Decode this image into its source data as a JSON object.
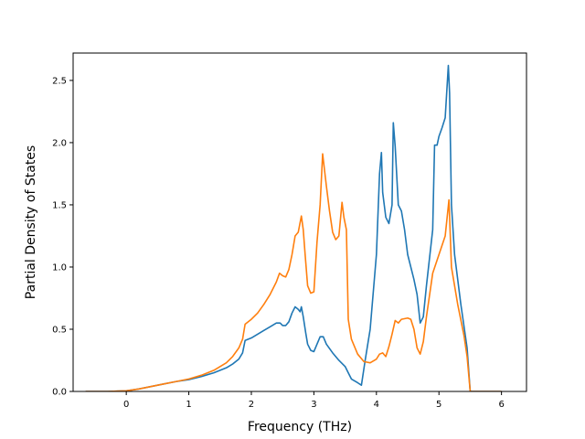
{
  "chart_data": {
    "type": "line",
    "title": "",
    "xlabel": "Frequency (THz)",
    "ylabel": "Partial Density of States",
    "xlim": [
      -0.85,
      6.4
    ],
    "ylim": [
      0,
      2.72
    ],
    "xticks": [
      0,
      1,
      2,
      3,
      4,
      5,
      6
    ],
    "xtick_labels": [
      "0",
      "1",
      "2",
      "3",
      "4",
      "5",
      "6"
    ],
    "yticks": [
      0.0,
      0.5,
      1.0,
      1.5,
      2.0,
      2.5
    ],
    "ytick_labels": [
      "0.0",
      "0.5",
      "1.0",
      "1.5",
      "2.0",
      "2.5"
    ],
    "grid": false,
    "legend": false,
    "series": [
      {
        "color": "#1f77b4",
        "x": [
          -0.65,
          -0.3,
          0,
          0.2,
          0.4,
          0.6,
          0.8,
          1.0,
          1.2,
          1.4,
          1.6,
          1.7,
          1.8,
          1.86,
          1.9,
          2.0,
          2.1,
          2.2,
          2.3,
          2.4,
          2.46,
          2.5,
          2.55,
          2.6,
          2.65,
          2.7,
          2.75,
          2.78,
          2.8,
          2.83,
          2.87,
          2.9,
          2.95,
          3.0,
          3.05,
          3.1,
          3.15,
          3.2,
          3.3,
          3.4,
          3.5,
          3.55,
          3.6,
          3.7,
          3.76,
          3.82,
          3.9,
          4.0,
          4.05,
          4.08,
          4.1,
          4.15,
          4.2,
          4.25,
          4.27,
          4.3,
          4.35,
          4.4,
          4.45,
          4.5,
          4.6,
          4.65,
          4.7,
          4.75,
          4.8,
          4.9,
          4.93,
          4.97,
          5.0,
          5.05,
          5.1,
          5.15,
          5.17,
          5.2,
          5.25,
          5.35,
          5.45,
          5.5,
          6.0
        ],
        "y": [
          0.0,
          0.0,
          0.005,
          0.02,
          0.04,
          0.06,
          0.08,
          0.095,
          0.12,
          0.15,
          0.19,
          0.22,
          0.26,
          0.31,
          0.41,
          0.43,
          0.46,
          0.49,
          0.52,
          0.55,
          0.55,
          0.53,
          0.53,
          0.56,
          0.63,
          0.68,
          0.66,
          0.64,
          0.68,
          0.6,
          0.47,
          0.38,
          0.33,
          0.32,
          0.38,
          0.44,
          0.44,
          0.38,
          0.31,
          0.25,
          0.2,
          0.15,
          0.1,
          0.07,
          0.05,
          0.25,
          0.5,
          1.1,
          1.75,
          1.92,
          1.6,
          1.4,
          1.35,
          1.5,
          2.16,
          1.97,
          1.5,
          1.45,
          1.3,
          1.1,
          0.9,
          0.78,
          0.55,
          0.6,
          0.85,
          1.3,
          1.98,
          1.98,
          2.05,
          2.12,
          2.2,
          2.62,
          2.4,
          1.5,
          1.1,
          0.7,
          0.35,
          0.0,
          0.0
        ]
      },
      {
        "color": "#ff7f0e",
        "x": [
          -0.65,
          -0.3,
          0,
          0.2,
          0.4,
          0.6,
          0.8,
          1.0,
          1.2,
          1.4,
          1.6,
          1.7,
          1.8,
          1.86,
          1.9,
          2.0,
          2.1,
          2.2,
          2.3,
          2.4,
          2.45,
          2.5,
          2.55,
          2.6,
          2.65,
          2.7,
          2.75,
          2.8,
          2.83,
          2.86,
          2.9,
          2.95,
          3.0,
          3.05,
          3.1,
          3.14,
          3.2,
          3.25,
          3.3,
          3.35,
          3.4,
          3.45,
          3.48,
          3.52,
          3.55,
          3.6,
          3.7,
          3.8,
          3.9,
          4.0,
          4.05,
          4.1,
          4.15,
          4.2,
          4.25,
          4.3,
          4.35,
          4.4,
          4.5,
          4.55,
          4.6,
          4.65,
          4.7,
          4.75,
          4.8,
          4.9,
          5.0,
          5.1,
          5.16,
          5.2,
          5.3,
          5.4,
          5.45,
          5.5,
          6.0
        ],
        "y": [
          0.0,
          0.0,
          0.005,
          0.02,
          0.04,
          0.06,
          0.08,
          0.1,
          0.13,
          0.17,
          0.23,
          0.28,
          0.35,
          0.42,
          0.54,
          0.58,
          0.63,
          0.7,
          0.78,
          0.88,
          0.95,
          0.93,
          0.92,
          0.98,
          1.1,
          1.25,
          1.28,
          1.41,
          1.3,
          1.1,
          0.85,
          0.79,
          0.8,
          1.2,
          1.5,
          1.91,
          1.65,
          1.45,
          1.28,
          1.22,
          1.25,
          1.52,
          1.4,
          1.3,
          0.58,
          0.42,
          0.3,
          0.24,
          0.23,
          0.26,
          0.3,
          0.31,
          0.28,
          0.36,
          0.46,
          0.57,
          0.55,
          0.58,
          0.59,
          0.58,
          0.5,
          0.35,
          0.3,
          0.4,
          0.6,
          0.95,
          1.1,
          1.25,
          1.54,
          1.0,
          0.7,
          0.45,
          0.28,
          0.0,
          0.0
        ]
      }
    ]
  }
}
